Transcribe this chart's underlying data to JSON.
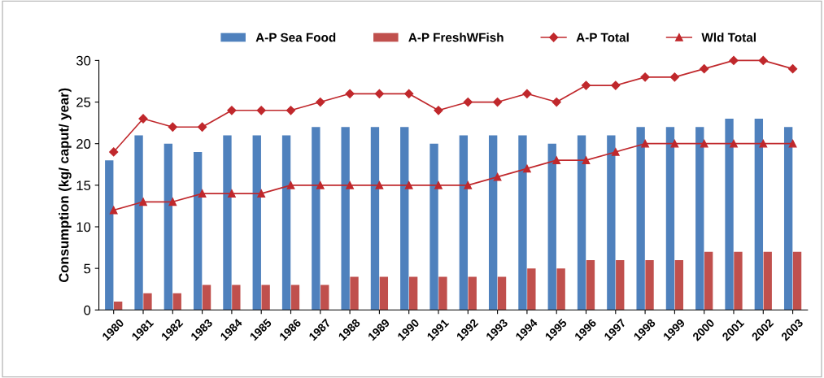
{
  "chart_data": {
    "type": "bar",
    "ylabel": "Consumption (kg/ caput/ year)",
    "categories": [
      "1980",
      "1981",
      "1982",
      "1983",
      "1984",
      "1985",
      "1986",
      "1987",
      "1988",
      "1989",
      "1990",
      "1991",
      "1992",
      "1993",
      "1994",
      "1995",
      "1996",
      "1997",
      "1998",
      "1999",
      "2000",
      "2001",
      "2002",
      "2003"
    ],
    "series": [
      {
        "name": "A-P Sea Food",
        "color": "#4f81bd",
        "values": [
          18,
          21,
          20,
          19,
          21,
          21,
          21,
          22,
          22,
          22,
          22,
          20,
          21,
          21,
          21,
          20,
          21,
          21,
          22,
          22,
          22,
          23,
          23,
          22
        ]
      },
      {
        "name": "A-P FreshWFish",
        "color": "#c0504d",
        "values": [
          1,
          2,
          2,
          3,
          3,
          3,
          3,
          3,
          4,
          4,
          4,
          4,
          4,
          4,
          5,
          5,
          6,
          6,
          6,
          6,
          7,
          7,
          7,
          7
        ]
      },
      {
        "name": "A-P Total",
        "type": "line",
        "color": "#c0282c",
        "marker": "diamond",
        "values": [
          19,
          23,
          22,
          22,
          24,
          24,
          24,
          25,
          26,
          26,
          26,
          24,
          25,
          25,
          26,
          25,
          27,
          27,
          28,
          28,
          29,
          30,
          30,
          29
        ]
      },
      {
        "name": "Wld Total",
        "type": "line",
        "color": "#c0282c",
        "marker": "triangle",
        "values": [
          12,
          13,
          13,
          14,
          14,
          14,
          15,
          15,
          15,
          15,
          15,
          15,
          15,
          16,
          17,
          18,
          18,
          19,
          20,
          20,
          20,
          20,
          20,
          20
        ]
      }
    ],
    "ylim": [
      0,
      30
    ],
    "yticks": [
      0,
      5,
      10,
      15,
      20,
      25,
      30
    ],
    "legend": "top",
    "grid": false
  }
}
